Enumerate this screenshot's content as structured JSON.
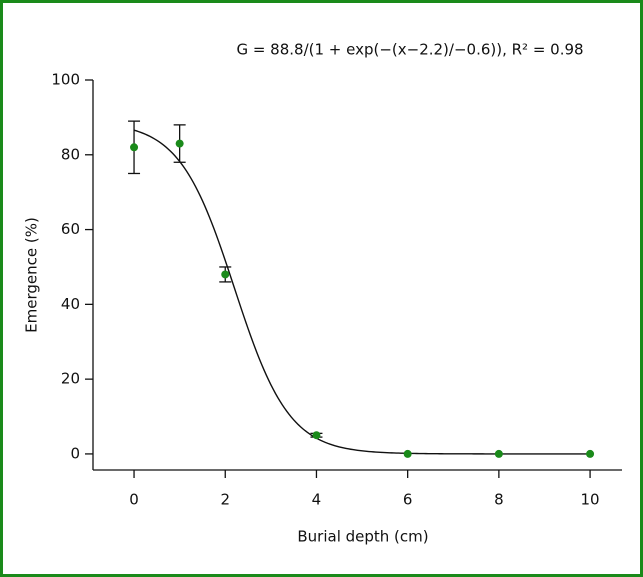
{
  "chart_data": {
    "type": "scatter",
    "title": "G = 88.8/(1 + exp(−(x−2.2)/−0.6)), R² = 0.98",
    "x_label": "Burial depth (cm)",
    "y_label": "Emergence (%)",
    "x": [
      0,
      1,
      2,
      4,
      6,
      8,
      10
    ],
    "values": [
      82,
      83,
      48,
      5,
      0,
      0,
      0
    ],
    "errors": [
      7,
      5,
      2,
      0.5,
      0,
      0,
      0
    ],
    "fit": {
      "a": 88.8,
      "x0": 2.2,
      "b": -0.6
    },
    "color": "#1a8a1a",
    "xlim": [
      -0.9,
      10.7
    ],
    "xticks": [
      0,
      2,
      4,
      6,
      8,
      10
    ],
    "ylim": [
      -4.3,
      100
    ],
    "yticks": [
      0,
      20,
      40,
      60,
      80,
      100
    ]
  }
}
